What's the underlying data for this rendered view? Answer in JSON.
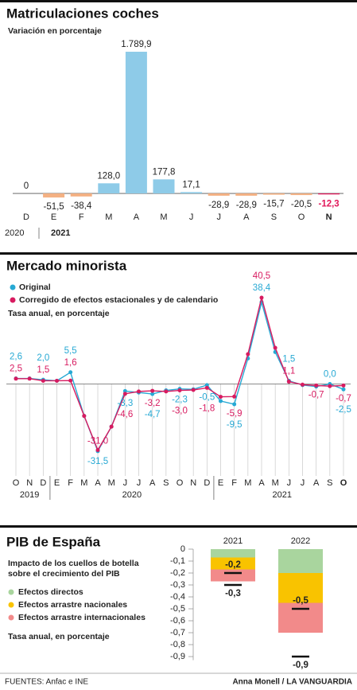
{
  "chart_data": [
    {
      "type": "bar",
      "title": "Matriculaciones coches",
      "subtitle": "Variación en porcentaje",
      "categories": [
        "D",
        "E",
        "F",
        "M",
        "A",
        "M",
        "J",
        "J",
        "A",
        "S",
        "O",
        "N"
      ],
      "values": [
        0,
        -51.5,
        -38.4,
        128.0,
        1789.9,
        177.8,
        17.1,
        -28.9,
        -28.9,
        -15.7,
        -20.5,
        -12.3
      ],
      "value_labels": [
        "0",
        "-51,5",
        "-38,4",
        "128,0",
        "1.789,9",
        "177,8",
        "17,1",
        "-28,9",
        "-28,9",
        "-15,7",
        "-20,5",
        "-12,3"
      ],
      "colors": [
        "#8ecbe8",
        "#f4b183",
        "#f4b183",
        "#8ecbe8",
        "#8ecbe8",
        "#8ecbe8",
        "#8ecbe8",
        "#f4b183",
        "#f4b183",
        "#f4b183",
        "#f4b183",
        "#e2175a"
      ],
      "years": [
        "2020",
        "2021"
      ],
      "ylim": [
        -100,
        1800
      ]
    },
    {
      "type": "line",
      "title": "Mercado minorista",
      "y_label": "Tasa anual, en porcentaje",
      "categories": [
        "O",
        "N",
        "D",
        "E",
        "F",
        "M",
        "A",
        "M",
        "J",
        "J",
        "A",
        "S",
        "O",
        "N",
        "D",
        "E",
        "F",
        "M",
        "A",
        "M",
        "J",
        "J",
        "A",
        "S",
        "O"
      ],
      "years": [
        "2019",
        "2020",
        "2021"
      ],
      "series": [
        {
          "name": "Original",
          "color": "#27a9d4",
          "values": [
            2.6,
            2.6,
            2.0,
            1.5,
            5.5,
            -15,
            -31.5,
            -20,
            -3.3,
            -4.0,
            -4.7,
            -3.0,
            -2.3,
            -2.5,
            -0.5,
            -8,
            -9.5,
            12,
            38.4,
            15,
            1.5,
            -0.5,
            -1.2,
            0.0,
            -2.5
          ],
          "value_labels": [
            "2,6",
            null,
            "2,0",
            null,
            "5,5",
            null,
            "-31,5",
            null,
            "-3,3",
            null,
            "-4,7",
            null,
            "-2,3",
            null,
            "-0,5",
            null,
            "-9,5",
            null,
            "38,4",
            null,
            "1,5",
            null,
            null,
            "0,0",
            "-2,5"
          ]
        },
        {
          "name": "Corregido de efectos estacionales y de calendario",
          "color": "#d81b60",
          "values": [
            2.5,
            2.5,
            1.5,
            1.5,
            1.6,
            -15,
            -31.0,
            -20,
            -4.6,
            -3.5,
            -3.2,
            -3.5,
            -3.0,
            -2.8,
            -1.8,
            -6,
            -5.9,
            14,
            40.5,
            17,
            1.1,
            -0.3,
            -0.7,
            -1.0,
            -0.7
          ],
          "value_labels": [
            "2,5",
            null,
            "1,5",
            null,
            "1,6",
            null,
            "-31,0",
            null,
            "-4,6",
            null,
            "-3,2",
            null,
            "-3,0",
            null,
            "-1,8",
            null,
            "-5,9",
            null,
            "40,5",
            null,
            "1,1",
            null,
            "-0,7",
            null,
            "-0,7"
          ]
        }
      ],
      "ylim": [
        -42,
        42
      ]
    },
    {
      "type": "bar",
      "stacked": true,
      "title": "PIB de España",
      "subtitle_lines": [
        "Impacto de los cuellos de botella",
        "sobre el crecimiento del PIB"
      ],
      "y_label": "Tasa anual, en porcentaje",
      "categories": [
        "2021",
        "2022"
      ],
      "series": [
        {
          "name": "Efectos directos",
          "color": "#a9d59e",
          "values": [
            -0.07,
            -0.2
          ]
        },
        {
          "name": "Efectos arrastre nacionales",
          "color": "#f9c300",
          "values": [
            -0.1,
            -0.25
          ]
        },
        {
          "name": "Efectos arrastre internacionales",
          "color": "#f28a8a",
          "values": [
            -0.1,
            -0.25
          ]
        }
      ],
      "marker_values": [
        [
          -0.2,
          -0.3
        ],
        [
          -0.5,
          -0.9
        ]
      ],
      "marker_labels": [
        [
          "-0,2",
          "-0,3"
        ],
        [
          "-0,5",
          "-0,9"
        ]
      ],
      "ylim": [
        -0.93,
        0
      ],
      "yticks": [
        0,
        {
          "value": -0.1,
          "label": "-0,1"
        },
        {
          "value": -0.2,
          "label": "-0,2"
        },
        {
          "value": -0.3,
          "label": "-0,3"
        },
        {
          "value": -0.4,
          "label": "-0,4"
        },
        {
          "value": -0.5,
          "label": "-0,5"
        },
        {
          "value": -0.6,
          "label": "-0,6"
        },
        {
          "value": -0.7,
          "label": "-0,7"
        },
        {
          "value": -0.8,
          "label": "-0,8"
        },
        {
          "value": -0.9,
          "label": "-0,9"
        }
      ]
    }
  ],
  "footer": {
    "source": "FUENTES: Anfac e INE",
    "credit": "Anna Monell / LA VANGUARDIA"
  }
}
